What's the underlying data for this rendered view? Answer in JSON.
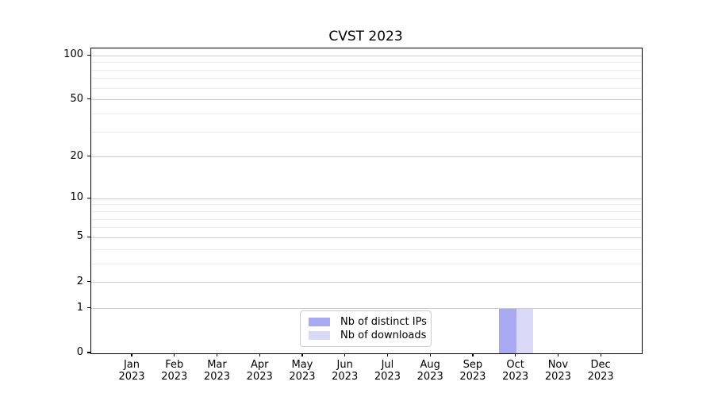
{
  "figure": {
    "background": "#ffffff"
  },
  "chart_data": {
    "type": "bar",
    "title": "CVST 2023",
    "x_tick_labels": [
      [
        "Jan",
        "2023"
      ],
      [
        "Feb",
        "2023"
      ],
      [
        "Mar",
        "2023"
      ],
      [
        "Apr",
        "2023"
      ],
      [
        "May",
        "2023"
      ],
      [
        "Jun",
        "2023"
      ],
      [
        "Jul",
        "2023"
      ],
      [
        "Aug",
        "2023"
      ],
      [
        "Sep",
        "2023"
      ],
      [
        "Oct",
        "2023"
      ],
      [
        "Nov",
        "2023"
      ],
      [
        "Dec",
        "2023"
      ]
    ],
    "series": [
      {
        "name": "Nb of distinct IPs",
        "color": "#a9a9f2",
        "values": [
          0,
          0,
          0,
          0,
          0,
          0,
          0,
          0,
          0,
          1,
          0,
          0
        ]
      },
      {
        "name": "Nb of downloads",
        "color": "#d9d9f8",
        "values": [
          0,
          0,
          0,
          0,
          0,
          0,
          0,
          0,
          0,
          1,
          0,
          0
        ]
      }
    ],
    "y_axis": {
      "scale": "log1p",
      "tick_values": [
        0,
        1,
        2,
        5,
        10,
        20,
        50,
        100
      ],
      "minor_gridline_values": [
        3,
        4,
        6,
        7,
        8,
        9,
        30,
        40,
        60,
        70,
        80,
        90
      ],
      "range": [
        0,
        112
      ]
    },
    "grid": {
      "major_color": "#cccccc",
      "minor_color": "#ececec"
    },
    "legend": {
      "position": "lower center"
    },
    "axis_color": "#000000"
  }
}
